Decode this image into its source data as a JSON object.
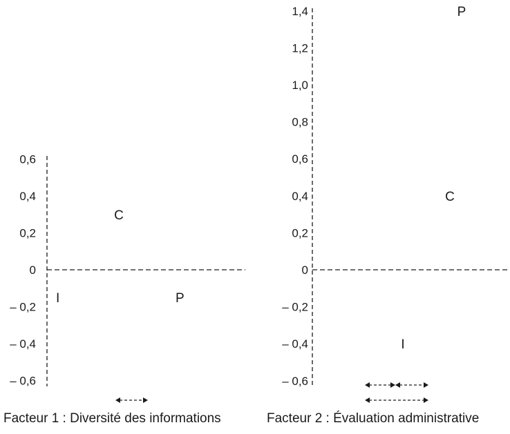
{
  "chart_data": [
    {
      "type": "scatter",
      "xlabel": "Facteur 1 : Diversité des informations",
      "yticks": [
        "0,6",
        "0,4",
        "0,2",
        "0",
        "– 0,2",
        "– 0,4",
        "– 0,6"
      ],
      "ylim": [
        -0.6,
        0.6
      ],
      "grid": false,
      "points": [
        {
          "label": "C",
          "x": 0.1,
          "y": 0.3
        },
        {
          "label": "I",
          "x": -0.07,
          "y": -0.15
        },
        {
          "label": "P",
          "x": 0.27,
          "y": -0.15
        }
      ],
      "significance_bars": 1
    },
    {
      "type": "scatter",
      "xlabel": "Facteur 2 : Évaluation administrative",
      "yticks": [
        "1,4",
        "1,2",
        "1,0",
        "0,8",
        "0,6",
        "0,4",
        "0,2",
        "0",
        "– 0,2",
        "– 0,4",
        "– 0,6"
      ],
      "ylim": [
        -0.6,
        1.4
      ],
      "grid": false,
      "points": [
        {
          "label": "P",
          "x": 0.4,
          "y": 1.4
        },
        {
          "label": "C",
          "x": 0.3,
          "y": 0.4
        },
        {
          "label": "I",
          "x": -0.1,
          "y": -0.4
        }
      ],
      "significance_bars": 3
    }
  ]
}
